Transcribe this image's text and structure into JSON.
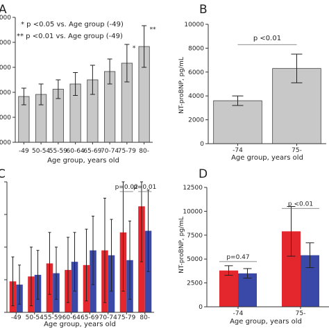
{
  "chart_data": [
    {
      "panel": "A",
      "type": "bar",
      "categories": [
        "-49",
        "50-54",
        "55-59",
        "60-64",
        "65-69",
        "70-74",
        "75-79",
        "80-"
      ],
      "values": [
        2200,
        2300,
        2550,
        2800,
        3000,
        3400,
        3800,
        4600
      ],
      "errors": [
        400,
        500,
        450,
        550,
        700,
        600,
        900,
        1000
      ],
      "xlabel": "Age group, years old",
      "ylabel": "",
      "ylim": [
        0,
        6000
      ],
      "yticks": [
        "000",
        "000",
        "000",
        "000",
        "000",
        "000"
      ],
      "bar_color": "#c8c8c8",
      "legend": [
        "* p <0.05 vs. Age group (-49)",
        "** p <0.01 vs. Age group (-49)"
      ],
      "annotations": [
        {
          "category_index": 6,
          "text": "*"
        },
        {
          "category_index": 7,
          "text": "**"
        }
      ]
    },
    {
      "panel": "B",
      "type": "bar",
      "categories": [
        "-74",
        "75-"
      ],
      "values": [
        3600,
        6300
      ],
      "errors": [
        400,
        1200
      ],
      "xlabel": "Age group, years old",
      "ylabel": "NT-proBNP, pg/mL",
      "ylim": [
        0,
        10000
      ],
      "yticks": [
        "0",
        "2000",
        "4000",
        "6000",
        "8000",
        "10000"
      ],
      "bar_color": "#c8c8c8",
      "annotations": [
        {
          "text": "p <0.01",
          "from": 0,
          "to": 1
        }
      ]
    },
    {
      "panel": "C",
      "type": "bar",
      "categories": [
        "-49",
        "50-54",
        "55-59",
        "60-64",
        "65-69",
        "70-74",
        "75-79",
        "80-"
      ],
      "series": [
        {
          "values": [
            1900,
            2200,
            3000,
            2600,
            2900,
            3800,
            4900,
            6500
          ],
          "errors": [
            1500,
            1800,
            1900,
            2000,
            2200,
            3200,
            3600,
            3400
          ],
          "color": "#e3272d"
        },
        {
          "values": [
            1700,
            2300,
            2400,
            3100,
            3800,
            3500,
            3200,
            5000
          ],
          "errors": [
            1200,
            1500,
            1600,
            1800,
            2100,
            2200,
            2400,
            2500
          ],
          "color": "#3a48a8"
        }
      ],
      "xlabel": "Age group, years old",
      "ylabel": "",
      "ylim": [
        0,
        8000
      ],
      "annotations": [
        {
          "category_index": 6,
          "text": "p=0.02"
        },
        {
          "category_index": 7,
          "text": "p=0.01"
        }
      ]
    },
    {
      "panel": "D",
      "type": "bar",
      "categories": [
        "-74",
        "75-"
      ],
      "series": [
        {
          "values": [
            3800,
            7900
          ],
          "errors": [
            500,
            2600
          ],
          "color": "#e3272d"
        },
        {
          "values": [
            3500,
            5400
          ],
          "errors": [
            500,
            1300
          ],
          "color": "#3a48a8"
        }
      ],
      "xlabel": "Age group, years old",
      "ylabel": "NT-proBNP, pg/mL",
      "ylim": [
        0,
        12500
      ],
      "yticks": [
        "0",
        "2500",
        "5000",
        "7500",
        "10000",
        "12500"
      ],
      "annotations": [
        {
          "category_index": 0,
          "text": "p=0.47"
        },
        {
          "category_index": 1,
          "text": "p <0.01"
        }
      ]
    }
  ],
  "panel_labels": [
    "A",
    "B",
    "C",
    "D"
  ]
}
